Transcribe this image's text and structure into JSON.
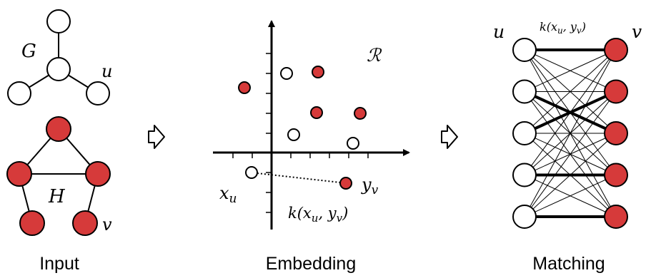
{
  "colors": {
    "node_fill_red": "#d63a3a",
    "node_fill_white": "#ffffff",
    "stroke": "#000000"
  },
  "input": {
    "caption": "Input",
    "graph_g_label": "G",
    "graph_h_label": "H",
    "node_u_label": "u",
    "node_v_label": "v"
  },
  "embedding": {
    "caption": "Embedding",
    "space_label": "ℛ",
    "xu_label": "x",
    "xu_sub": "u",
    "yv_label": "y",
    "yv_sub": "v",
    "kernel_label_prefix": "k(x",
    "kernel_label_sub1": "u",
    "kernel_label_mid": ", y",
    "kernel_label_sub2": "v",
    "kernel_label_suffix": ")"
  },
  "matching": {
    "caption": "Matching",
    "left_label": "u",
    "right_label": "v",
    "kernel_label_prefix": "k(x",
    "kernel_label_sub1": "u",
    "kernel_label_mid": ", y",
    "kernel_label_sub2": "v",
    "kernel_label_suffix": ")"
  },
  "arrows": [
    "arrow-right-icon",
    "arrow-right-icon"
  ]
}
